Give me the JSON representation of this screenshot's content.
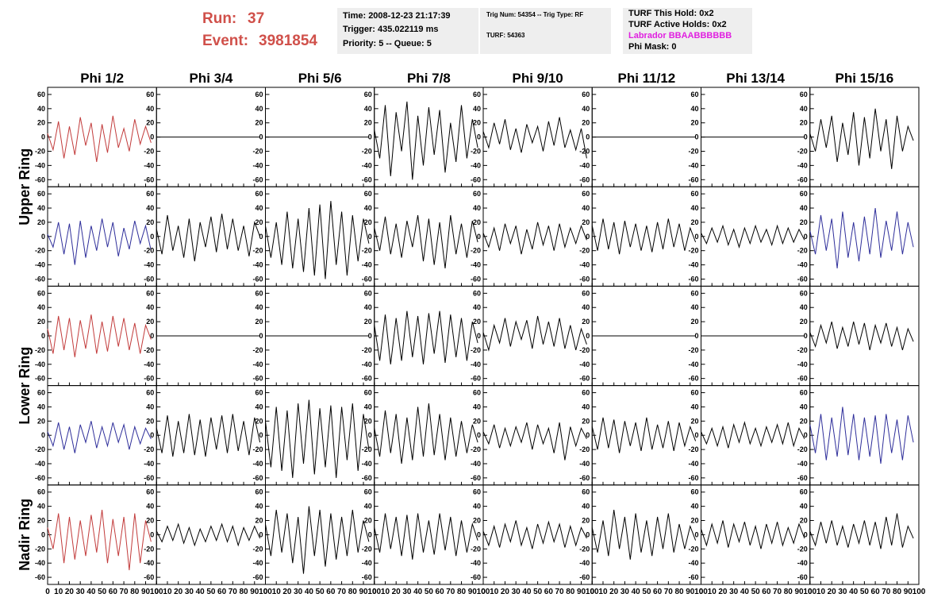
{
  "header": {
    "run_label": "Run:",
    "run": 37,
    "event_label": "Event:",
    "event": 3981854,
    "time": "Time: 2008-12-23 21:17:39",
    "trigger": "Trigger: 435.022119 ms",
    "priority": "Priority: 5 -- Queue: 5",
    "trig_num": "Trig Num: 54354 -- Trig Type: RF",
    "turf": "TURF: 54363",
    "turf_hold": "TURF This Hold: 0x2",
    "turf_active": "TURF Active Holds: 0x2",
    "labrador": "Labrador BBAABBBBBB",
    "phi_mask": "Phi Mask: 0"
  },
  "chart_data": {
    "type": "line",
    "columns": [
      "Phi 1/2",
      "Phi 3/4",
      "Phi 5/6",
      "Phi 7/8",
      "Phi 9/10",
      "Phi 11/12",
      "Phi 13/14",
      "Phi 15/16"
    ],
    "row_labels": [
      "Upper Ring",
      "Lower Ring",
      "Nadir Ring"
    ],
    "xlim": [
      0,
      100
    ],
    "ylim": [
      -70,
      70
    ],
    "xticks": [
      0,
      10,
      20,
      30,
      40,
      50,
      60,
      70,
      80,
      90,
      100
    ],
    "yticks": [
      -60,
      -40,
      -20,
      0,
      20,
      40,
      60
    ],
    "x": [
      0,
      5,
      10,
      15,
      20,
      25,
      30,
      35,
      40,
      45,
      50,
      55,
      60,
      65,
      70,
      75,
      80,
      85,
      90,
      95
    ],
    "panels": [
      {
        "color": "#c23b3b",
        "values": [
          5,
          -18,
          22,
          -30,
          15,
          -25,
          28,
          -12,
          20,
          -35,
          18,
          -22,
          30,
          -15,
          12,
          -20,
          25,
          -10,
          15,
          -8
        ]
      },
      {
        "color": "#000000",
        "values": [
          0,
          0,
          0,
          0,
          0,
          0,
          0,
          0,
          0,
          0,
          0,
          0,
          0,
          0,
          0,
          0,
          0,
          0,
          0,
          0
        ]
      },
      {
        "color": "#000000",
        "values": [
          0,
          0,
          0,
          0,
          0,
          0,
          0,
          0,
          0,
          0,
          0,
          0,
          0,
          0,
          0,
          0,
          0,
          0,
          0,
          0
        ]
      },
      {
        "color": "#000000",
        "values": [
          10,
          -30,
          45,
          -55,
          35,
          -20,
          50,
          -60,
          30,
          -40,
          42,
          -25,
          38,
          -50,
          20,
          -35,
          45,
          -30,
          25,
          -15
        ]
      },
      {
        "color": "#000000",
        "values": [
          8,
          -15,
          20,
          -10,
          25,
          -18,
          12,
          -22,
          18,
          -8,
          15,
          -20,
          22,
          -12,
          28,
          -15,
          10,
          -18,
          12,
          -30
        ]
      },
      {
        "color": "#000000",
        "values": [
          0,
          0,
          0,
          0,
          0,
          0,
          0,
          0,
          0,
          0,
          0,
          0,
          0,
          0,
          0,
          0,
          0,
          0,
          0,
          0
        ]
      },
      {
        "color": "#000000",
        "values": [
          0,
          0,
          0,
          0,
          0,
          0,
          0,
          0,
          0,
          0,
          0,
          0,
          0,
          0,
          0,
          0,
          0,
          0,
          0,
          0
        ]
      },
      {
        "color": "#000000",
        "values": [
          5,
          -20,
          25,
          -15,
          30,
          -35,
          20,
          -25,
          35,
          -40,
          28,
          -30,
          40,
          -20,
          25,
          -45,
          30,
          -20,
          15,
          -5
        ]
      },
      {
        "color": "#2e2e9a",
        "values": [
          3,
          -15,
          20,
          -25,
          18,
          -40,
          22,
          -30,
          15,
          -20,
          25,
          -15,
          20,
          -28,
          12,
          -18,
          22,
          -10,
          15,
          -20
        ]
      },
      {
        "color": "#000000",
        "values": [
          10,
          -25,
          30,
          -20,
          15,
          -30,
          25,
          -35,
          20,
          -15,
          28,
          -22,
          32,
          -18,
          25,
          -20,
          15,
          -28,
          20,
          0
        ]
      },
      {
        "color": "#000000",
        "values": [
          15,
          -30,
          20,
          -40,
          35,
          -45,
          25,
          -50,
          40,
          -55,
          45,
          -60,
          50,
          -40,
          35,
          -55,
          30,
          -35,
          25,
          -10
        ]
      },
      {
        "color": "#000000",
        "values": [
          12,
          -20,
          28,
          -25,
          18,
          -30,
          22,
          -15,
          30,
          -35,
          25,
          -40,
          20,
          -45,
          30,
          -25,
          18,
          -30,
          22,
          -8
        ]
      },
      {
        "color": "#000000",
        "values": [
          5,
          -15,
          12,
          -20,
          18,
          -10,
          15,
          -25,
          10,
          -18,
          20,
          -12,
          15,
          -20,
          18,
          -15,
          12,
          -10,
          15,
          -5
        ]
      },
      {
        "color": "#000000",
        "values": [
          15,
          -20,
          25,
          -18,
          20,
          -25,
          22,
          -15,
          18,
          -20,
          15,
          -22,
          20,
          -18,
          25,
          -15,
          18,
          -20,
          12,
          -8
        ]
      },
      {
        "color": "#000000",
        "values": [
          5,
          -10,
          12,
          -8,
          15,
          -12,
          10,
          -15,
          12,
          -10,
          15,
          -8,
          10,
          -12,
          15,
          -10,
          12,
          -8,
          10,
          -5
        ]
      },
      {
        "color": "#2e2e9a",
        "values": [
          8,
          -25,
          30,
          -20,
          25,
          -45,
          35,
          -30,
          20,
          -35,
          28,
          -25,
          40,
          -30,
          22,
          -20,
          35,
          -25,
          20,
          -15
        ]
      },
      {
        "color": "#c23b3b",
        "values": [
          10,
          -25,
          28,
          -20,
          25,
          -30,
          22,
          -18,
          30,
          -25,
          20,
          -22,
          28,
          -15,
          25,
          -20,
          18,
          -25,
          15,
          -5
        ]
      },
      {
        "color": "#000000",
        "values": [
          0,
          0,
          0,
          0,
          0,
          0,
          0,
          0,
          0,
          0,
          0,
          0,
          0,
          0,
          0,
          0,
          0,
          0,
          0,
          0
        ]
      },
      {
        "color": "#000000",
        "values": [
          0,
          0,
          0,
          0,
          0,
          0,
          0,
          0,
          0,
          0,
          0,
          0,
          0,
          0,
          0,
          0,
          0,
          0,
          0,
          0
        ]
      },
      {
        "color": "#000000",
        "values": [
          15,
          -35,
          30,
          -40,
          25,
          -35,
          35,
          -30,
          28,
          -40,
          32,
          -25,
          35,
          -38,
          30,
          -30,
          25,
          -35,
          20,
          -10
        ]
      },
      {
        "color": "#000000",
        "values": [
          5,
          -20,
          15,
          -10,
          25,
          -15,
          20,
          -5,
          22,
          -18,
          28,
          -12,
          20,
          -15,
          25,
          -18,
          15,
          -20,
          10,
          -12
        ]
      },
      {
        "color": "#000000",
        "values": [
          0,
          0,
          0,
          0,
          0,
          0,
          0,
          0,
          0,
          0,
          0,
          0,
          0,
          0,
          0,
          0,
          0,
          0,
          0,
          0
        ]
      },
      {
        "color": "#000000",
        "values": [
          0,
          0,
          0,
          0,
          0,
          0,
          0,
          0,
          0,
          0,
          0,
          0,
          0,
          0,
          0,
          0,
          0,
          0,
          0,
          0
        ]
      },
      {
        "color": "#000000",
        "values": [
          5,
          -15,
          15,
          -10,
          20,
          -18,
          12,
          -15,
          20,
          -12,
          18,
          -20,
          15,
          -10,
          18,
          -15,
          12,
          -20,
          10,
          -8
        ]
      },
      {
        "color": "#2e2e9a",
        "values": [
          5,
          -15,
          18,
          -20,
          12,
          -25,
          15,
          -10,
          20,
          -18,
          12,
          -15,
          18,
          -10,
          15,
          -20,
          12,
          -12,
          10,
          -5
        ]
      },
      {
        "color": "#000000",
        "values": [
          10,
          -25,
          28,
          -30,
          20,
          -25,
          30,
          -28,
          22,
          -30,
          25,
          -20,
          28,
          -25,
          30,
          -22,
          20,
          -28,
          25,
          -10
        ]
      },
      {
        "color": "#000000",
        "values": [
          20,
          -45,
          40,
          -50,
          35,
          -60,
          45,
          -40,
          50,
          -55,
          38,
          -45,
          42,
          -60,
          40,
          -35,
          45,
          -50,
          30,
          -20
        ]
      },
      {
        "color": "#000000",
        "values": [
          10,
          -30,
          35,
          -25,
          30,
          -40,
          25,
          -35,
          40,
          -30,
          45,
          -28,
          30,
          -35,
          25,
          -30,
          20,
          -25,
          15,
          -10
        ]
      },
      {
        "color": "#000000",
        "values": [
          5,
          -12,
          15,
          -18,
          10,
          -15,
          12,
          -10,
          18,
          -20,
          15,
          -12,
          10,
          -25,
          18,
          -35,
          12,
          -15,
          10,
          -5
        ]
      },
      {
        "color": "#000000",
        "values": [
          12,
          -20,
          25,
          -18,
          22,
          -25,
          20,
          -15,
          18,
          -22,
          25,
          -20,
          15,
          -18,
          20,
          -22,
          18,
          -15,
          12,
          -8
        ]
      },
      {
        "color": "#000000",
        "values": [
          5,
          -12,
          10,
          -15,
          12,
          -18,
          15,
          -10,
          18,
          -12,
          10,
          -15,
          12,
          -10,
          15,
          -12,
          18,
          -15,
          10,
          -5
        ]
      },
      {
        "color": "#2e2e9a",
        "values": [
          15,
          -25,
          30,
          -35,
          25,
          -30,
          40,
          -28,
          30,
          -35,
          25,
          -30,
          28,
          -40,
          30,
          -25,
          22,
          -35,
          28,
          -10
        ]
      },
      {
        "color": "#c23b3b",
        "values": [
          10,
          -20,
          30,
          -40,
          25,
          -35,
          20,
          -30,
          28,
          -25,
          35,
          -40,
          22,
          -30,
          25,
          -50,
          30,
          -40,
          20,
          -10
        ]
      },
      {
        "color": "#000000",
        "values": [
          5,
          -10,
          12,
          -8,
          15,
          -12,
          10,
          -15,
          8,
          -10,
          12,
          -8,
          15,
          -10,
          12,
          -15,
          10,
          -8,
          12,
          -5
        ]
      },
      {
        "color": "#000000",
        "values": [
          15,
          -30,
          35,
          -25,
          30,
          -40,
          25,
          -55,
          40,
          -30,
          35,
          -45,
          30,
          -35,
          25,
          -30,
          35,
          -25,
          20,
          -10
        ]
      },
      {
        "color": "#000000",
        "values": [
          10,
          -25,
          30,
          -20,
          25,
          -30,
          28,
          -35,
          30,
          -25,
          20,
          -28,
          30,
          -22,
          25,
          -30,
          20,
          -25,
          15,
          -8
        ]
      },
      {
        "color": "#000000",
        "values": [
          5,
          -15,
          12,
          -18,
          15,
          -10,
          20,
          -15,
          10,
          -20,
          15,
          -12,
          18,
          -10,
          15,
          -18,
          12,
          -15,
          10,
          -5
        ]
      },
      {
        "color": "#000000",
        "values": [
          10,
          -25,
          20,
          -30,
          35,
          -20,
          25,
          -35,
          30,
          -25,
          20,
          -30,
          25,
          -20,
          30,
          -25,
          15,
          -20,
          12,
          -8
        ]
      },
      {
        "color": "#000000",
        "values": [
          8,
          -15,
          15,
          -12,
          20,
          -18,
          15,
          -10,
          18,
          -15,
          12,
          -20,
          15,
          -12,
          18,
          -15,
          10,
          -12,
          15,
          -5
        ]
      },
      {
        "color": "#000000",
        "values": [
          5,
          -15,
          18,
          -12,
          20,
          -15,
          12,
          -18,
          15,
          -12,
          20,
          -15,
          18,
          -20,
          25,
          -15,
          30,
          -18,
          12,
          -5
        ]
      }
    ]
  }
}
